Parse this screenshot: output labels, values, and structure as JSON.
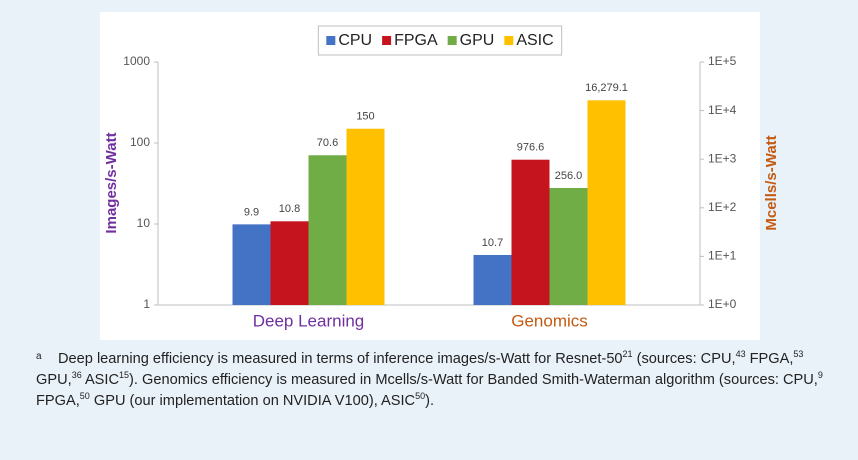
{
  "chart_data": {
    "type": "bar",
    "categories": [
      "Deep Learning",
      "Genomics"
    ],
    "category_colors": [
      "#7030a0",
      "#c55a11"
    ],
    "category_axes": [
      "y",
      "y2"
    ],
    "series": [
      {
        "name": "CPU",
        "color": "#4472c4",
        "values": [
          9.9,
          10.7
        ],
        "value_labels": [
          "9.9",
          "10.7"
        ]
      },
      {
        "name": "FPGA",
        "color": "#c5141e",
        "values": [
          10.8,
          976.6
        ],
        "value_labels": [
          "10.8",
          "976.6"
        ]
      },
      {
        "name": "GPU",
        "color": "#70ad47",
        "values": [
          70.6,
          256.0
        ],
        "value_labels": [
          "70.6",
          "256.0"
        ]
      },
      {
        "name": "ASIC",
        "color": "#ffc000",
        "values": [
          150,
          16279.1
        ],
        "value_labels": [
          "150",
          "16,279.1"
        ]
      }
    ],
    "ylabel": "Images/s-Watt",
    "ylabel_color": "#7030a0",
    "y2label": "Mcells/s-Watt",
    "y2label_color": "#c55a11",
    "ylog": true,
    "y2log": true,
    "ylim": [
      1,
      1000
    ],
    "yticks": [
      1,
      10,
      100,
      1000
    ],
    "y2lim": [
      1,
      100000
    ],
    "y2ticks": [
      {
        "value": 1,
        "label": "1E+0"
      },
      {
        "value": 10,
        "label": "1E+1"
      },
      {
        "value": 100,
        "label": "1E+2"
      },
      {
        "value": 1000,
        "label": "1E+3"
      },
      {
        "value": 10000,
        "label": "1E+4"
      },
      {
        "value": 100000,
        "label": "1E+5"
      }
    ],
    "legend": "top",
    "grid": false
  },
  "footnote": {
    "marker": "a",
    "segments": [
      {
        "text": "Deep learning efficiency is measured in terms of inference images/s-Watt for Resnet-50"
      },
      {
        "sup": "21"
      },
      {
        "text": " (sources: CPU,"
      },
      {
        "sup": "43"
      },
      {
        "text": " FPGA,"
      },
      {
        "sup": "53"
      },
      {
        "text": " GPU,"
      },
      {
        "sup": "36"
      },
      {
        "text": " ASIC"
      },
      {
        "sup": "15"
      },
      {
        "text": "). Genomics efficiency is measured in Mcells/s-Watt for Banded Smith-Waterman algorithm (sources: CPU,"
      },
      {
        "sup": "9"
      },
      {
        "text": " FPGA,"
      },
      {
        "sup": "50"
      },
      {
        "text": " GPU (our implementation on NVIDIA V100), ASIC"
      },
      {
        "sup": "50"
      },
      {
        "text": ")."
      }
    ]
  }
}
